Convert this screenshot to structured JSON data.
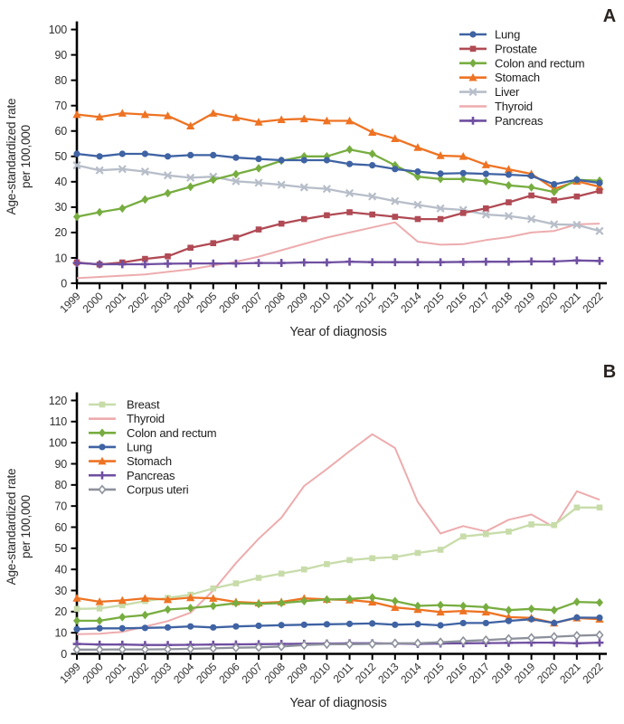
{
  "figure": {
    "background": "#ffffff",
    "panel_labels": [
      "A",
      "B"
    ],
    "panel_label_color": "#2a2320"
  },
  "chart_data": [
    {
      "panel_label": "A",
      "type": "line",
      "xlabel": "Year of diagnosis",
      "ylabel_lines": [
        "Age-standardized rate",
        "per 100,000"
      ],
      "ylim": [
        0,
        100
      ],
      "ytick_step": 10,
      "grid": false,
      "legend_position": "upper-right-inside",
      "x": [
        1999,
        2000,
        2001,
        2002,
        2003,
        2004,
        2005,
        2006,
        2007,
        2008,
        2009,
        2010,
        2011,
        2012,
        2013,
        2014,
        2015,
        2016,
        2017,
        2018,
        2019,
        2020,
        2021,
        2022
      ],
      "series": [
        {
          "name": "Lung",
          "color": "#3f63a3",
          "marker": "circle",
          "values": [
            51,
            50,
            51,
            51,
            50,
            50.5,
            50.5,
            49.5,
            49,
            48.5,
            48.5,
            48.5,
            47,
            46.5,
            45,
            44,
            43.2,
            43.4,
            43.1,
            42.8,
            42.3,
            39,
            40.8,
            39.5
          ]
        },
        {
          "name": "Prostate",
          "color": "#b04a54",
          "marker": "square",
          "values": [
            8.2,
            7.4,
            8.2,
            9.6,
            10.6,
            14,
            15.8,
            18,
            21.2,
            23.5,
            25.3,
            26.8,
            28,
            27.1,
            26.2,
            25.3,
            25.3,
            27.7,
            29.5,
            31.9,
            34.6,
            32.7,
            34.2,
            36.4
          ]
        },
        {
          "name": "Colon and rectum",
          "color": "#77ad40",
          "marker": "diamond",
          "values": [
            26.2,
            28,
            29.5,
            33,
            35.5,
            38,
            40.8,
            43,
            45.3,
            48.3,
            50,
            50,
            52.7,
            51,
            46.5,
            42,
            41.1,
            41.1,
            40.2,
            38.6,
            37.8,
            36,
            40.8,
            40.4
          ]
        },
        {
          "name": "Stomach",
          "color": "#ee7323",
          "marker": "triangle",
          "values": [
            66.5,
            65.5,
            67,
            66.5,
            66,
            62,
            67,
            65.3,
            63.5,
            64.5,
            64.8,
            64,
            64,
            59.5,
            57,
            53.5,
            50.3,
            50,
            46.7,
            44.9,
            43.1,
            37.2,
            40.2,
            38
          ]
        },
        {
          "name": "Liver",
          "color": "#b7bec9",
          "marker": "x",
          "values": [
            46.5,
            44.5,
            45,
            44,
            42.5,
            41.6,
            42,
            40.2,
            39.6,
            38.8,
            37.8,
            37.2,
            35.5,
            34.2,
            32.4,
            30.9,
            29.5,
            28.9,
            27.1,
            26.5,
            25.3,
            23.2,
            23,
            20.6
          ]
        },
        {
          "name": "Thyroid",
          "color": "#edacae",
          "marker": "none",
          "values": [
            2,
            2.5,
            3,
            3.5,
            4.5,
            5.5,
            7,
            8.5,
            10.5,
            13,
            15.5,
            18,
            20,
            22,
            24,
            16.4,
            15.2,
            15.4,
            17,
            18.2,
            20,
            20.6,
            23.2,
            23.5
          ]
        },
        {
          "name": "Pancreas",
          "color": "#6f4fa1",
          "marker": "plus",
          "values": [
            8,
            7.5,
            7.5,
            7.5,
            7.7,
            7.8,
            7.8,
            7.8,
            8,
            8,
            8.2,
            8.2,
            8.5,
            8.3,
            8.3,
            8.3,
            8.3,
            8.4,
            8.5,
            8.5,
            8.6,
            8.6,
            9,
            8.8
          ]
        }
      ]
    },
    {
      "panel_label": "B",
      "type": "line",
      "xlabel": "Year of diagnosis",
      "ylabel_lines": [
        "Age-standardized rate",
        "per 100,000"
      ],
      "ylim": [
        0,
        120
      ],
      "ytick_step": 10,
      "grid": false,
      "legend_position": "upper-left-inside",
      "x": [
        1999,
        2000,
        2001,
        2002,
        2003,
        2004,
        2005,
        2006,
        2007,
        2008,
        2009,
        2010,
        2011,
        2012,
        2013,
        2014,
        2015,
        2016,
        2017,
        2018,
        2019,
        2020,
        2021,
        2022
      ],
      "series": [
        {
          "name": "Breast",
          "color": "#c8dcaa",
          "marker": "square",
          "values": [
            21.3,
            21.5,
            23,
            25,
            26.5,
            28,
            31,
            33.4,
            36,
            38,
            40,
            42.5,
            44.4,
            45.3,
            45.8,
            47.8,
            49.3,
            55.6,
            56.7,
            57.9,
            61.3,
            61,
            69.3,
            69.3
          ]
        },
        {
          "name": "Thyroid",
          "color": "#edacae",
          "marker": "none",
          "values": [
            9.3,
            9.5,
            10.4,
            12.9,
            15.5,
            19.5,
            30,
            43,
            54.5,
            64.5,
            79.5,
            87.5,
            96,
            104,
            97.5,
            72,
            57,
            60.5,
            58,
            63.5,
            66,
            60,
            77,
            73
          ]
        },
        {
          "name": "Colon and rectum",
          "color": "#77ad40",
          "marker": "diamond",
          "values": [
            15.7,
            15.7,
            17.4,
            18.4,
            21,
            21.7,
            22.7,
            24,
            23.6,
            24.1,
            25,
            25.7,
            26,
            26.7,
            25,
            22.7,
            23.1,
            22.7,
            22.1,
            20.7,
            21.3,
            20.7,
            24.6,
            24.3
          ]
        },
        {
          "name": "Lung",
          "color": "#3f63a3",
          "marker": "circle",
          "values": [
            11.7,
            12.1,
            12.1,
            12.3,
            12.5,
            13,
            12.5,
            13,
            13.3,
            13.6,
            13.8,
            14,
            14.2,
            14.4,
            13.8,
            14.1,
            13.5,
            14.6,
            14.6,
            15.6,
            16.4,
            14.6,
            17.2,
            17.1
          ]
        },
        {
          "name": "Stomach",
          "color": "#ee7323",
          "marker": "triangle",
          "values": [
            26.4,
            24.7,
            25.3,
            26.3,
            25.7,
            26.6,
            26.3,
            24.6,
            24.1,
            24.6,
            26.3,
            25.8,
            25.5,
            24.5,
            22,
            21,
            19.8,
            20.3,
            19.8,
            17.4,
            17,
            14.6,
            17,
            16.4
          ]
        },
        {
          "name": "Pancreas",
          "color": "#6f4fa1",
          "marker": "plus",
          "values": [
            4.7,
            4.4,
            4.4,
            4.2,
            4.2,
            4.3,
            4.4,
            4.5,
            4.6,
            4.7,
            4.8,
            4.9,
            5,
            5,
            4.9,
            4.7,
            4.9,
            5,
            5.1,
            5.2,
            5.3,
            5.3,
            5,
            5.3
          ]
        },
        {
          "name": "Corpus uteri",
          "color": "#8d919c",
          "marker": "open-diamond",
          "values": [
            2,
            2,
            2.1,
            2.1,
            2.2,
            2.4,
            2.6,
            2.9,
            3.1,
            3.5,
            4.2,
            4.6,
            4.6,
            4.7,
            5,
            5,
            5.5,
            6.1,
            6.5,
            7.1,
            7.6,
            8.1,
            8.6,
            8.9
          ]
        }
      ]
    }
  ]
}
